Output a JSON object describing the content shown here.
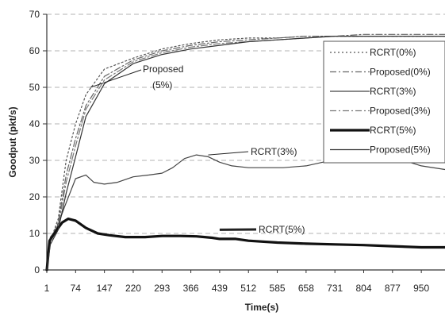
{
  "chart_data": {
    "type": "line",
    "xlabel": "Time(s)",
    "ylabel": "Goodput (pkt/s)",
    "ylim": [
      0,
      70
    ],
    "yticks": [
      "0",
      "10",
      "20",
      "30",
      "40",
      "50",
      "60",
      "70"
    ],
    "xticks": [
      "1",
      "74",
      "147",
      "220",
      "293",
      "366",
      "439",
      "512",
      "585",
      "658",
      "731",
      "804",
      "877",
      "950"
    ],
    "xlim": [
      1,
      1010
    ],
    "grid": "horizontal dashed",
    "legend_position": "right",
    "series": [
      {
        "name": "RCRT(0%)",
        "style": "dotted",
        "width": 1.2,
        "color": "#555555",
        "points": [
          [
            1,
            0
          ],
          [
            10,
            8
          ],
          [
            30,
            14
          ],
          [
            50,
            30
          ],
          [
            74,
            40
          ],
          [
            100,
            48
          ],
          [
            147,
            55
          ],
          [
            220,
            58
          ],
          [
            293,
            60.5
          ],
          [
            366,
            62
          ],
          [
            439,
            63
          ],
          [
            512,
            63.5
          ],
          [
            585,
            63.5
          ],
          [
            658,
            64
          ],
          [
            731,
            64
          ],
          [
            804,
            64
          ],
          [
            877,
            64
          ],
          [
            950,
            64
          ],
          [
            1010,
            64
          ]
        ]
      },
      {
        "name": "Proposed(0%)",
        "style": "dashdot",
        "width": 1.2,
        "color": "#666666",
        "points": [
          [
            1,
            0
          ],
          [
            10,
            8
          ],
          [
            30,
            13
          ],
          [
            50,
            26
          ],
          [
            74,
            36
          ],
          [
            100,
            45
          ],
          [
            147,
            53
          ],
          [
            220,
            57.5
          ],
          [
            293,
            60
          ],
          [
            366,
            61.5
          ],
          [
            439,
            62.5
          ],
          [
            512,
            63
          ],
          [
            585,
            63.5
          ],
          [
            658,
            64
          ],
          [
            731,
            64
          ],
          [
            804,
            64.5
          ],
          [
            877,
            64.5
          ],
          [
            950,
            64.5
          ],
          [
            1010,
            64.5
          ]
        ]
      },
      {
        "name": "RCRT(3%)",
        "style": "solid",
        "width": 1.2,
        "color": "#444444",
        "points": [
          [
            1,
            0
          ],
          [
            10,
            9
          ],
          [
            25,
            11
          ],
          [
            45,
            17
          ],
          [
            74,
            25
          ],
          [
            100,
            26
          ],
          [
            120,
            24
          ],
          [
            147,
            23.5
          ],
          [
            180,
            24
          ],
          [
            220,
            25.5
          ],
          [
            260,
            26
          ],
          [
            293,
            26.5
          ],
          [
            320,
            28
          ],
          [
            350,
            30.5
          ],
          [
            380,
            31.5
          ],
          [
            410,
            31
          ],
          [
            439,
            29.5
          ],
          [
            470,
            28.5
          ],
          [
            512,
            28
          ],
          [
            560,
            28
          ],
          [
            600,
            28
          ],
          [
            658,
            28.5
          ],
          [
            700,
            29.5
          ],
          [
            731,
            30.5
          ],
          [
            780,
            31
          ],
          [
            830,
            30.5
          ],
          [
            877,
            30
          ],
          [
            920,
            29.5
          ],
          [
            950,
            28.5
          ],
          [
            1010,
            27.5
          ]
        ]
      },
      {
        "name": "Proposed(3%)",
        "style": "dashdot",
        "width": 1.2,
        "color": "#777777",
        "points": [
          [
            1,
            0
          ],
          [
            10,
            8
          ],
          [
            30,
            12
          ],
          [
            50,
            24
          ],
          [
            74,
            34
          ],
          [
            100,
            44
          ],
          [
            147,
            52
          ],
          [
            220,
            57
          ],
          [
            293,
            59.5
          ],
          [
            366,
            61
          ],
          [
            439,
            62
          ],
          [
            512,
            62.5
          ],
          [
            585,
            63
          ],
          [
            658,
            63.5
          ],
          [
            731,
            64
          ],
          [
            804,
            64
          ],
          [
            877,
            64
          ],
          [
            950,
            64
          ],
          [
            1010,
            64
          ]
        ]
      },
      {
        "name": "RCRT(5%)",
        "style": "solid",
        "width": 3.2,
        "color": "#111111",
        "points": [
          [
            1,
            0
          ],
          [
            8,
            8
          ],
          [
            20,
            10
          ],
          [
            40,
            13
          ],
          [
            55,
            14
          ],
          [
            74,
            13.5
          ],
          [
            100,
            11.5
          ],
          [
            130,
            10
          ],
          [
            160,
            9.5
          ],
          [
            200,
            9
          ],
          [
            250,
            9
          ],
          [
            293,
            9.3
          ],
          [
            340,
            9.3
          ],
          [
            380,
            9.2
          ],
          [
            420,
            8.8
          ],
          [
            439,
            8.5
          ],
          [
            480,
            8.5
          ],
          [
            512,
            8
          ],
          [
            585,
            7.5
          ],
          [
            658,
            7.2
          ],
          [
            731,
            7
          ],
          [
            804,
            6.8
          ],
          [
            877,
            6.5
          ],
          [
            950,
            6.2
          ],
          [
            1010,
            6.2
          ]
        ]
      },
      {
        "name": "Proposed(5%)",
        "style": "solid",
        "width": 1.2,
        "color": "#333333",
        "points": [
          [
            1,
            0
          ],
          [
            10,
            7
          ],
          [
            30,
            11
          ],
          [
            50,
            21
          ],
          [
            74,
            31
          ],
          [
            100,
            42
          ],
          [
            147,
            51
          ],
          [
            220,
            56.5
          ],
          [
            293,
            59
          ],
          [
            366,
            60.5
          ],
          [
            439,
            61.5
          ],
          [
            512,
            62.5
          ],
          [
            585,
            63
          ],
          [
            658,
            63.5
          ],
          [
            731,
            64
          ],
          [
            804,
            64
          ],
          [
            877,
            64
          ],
          [
            950,
            64
          ],
          [
            1010,
            64
          ]
        ]
      }
    ],
    "annotations": [
      {
        "text_lines": [
          "Proposed",
          "(5%)"
        ],
        "target": [
          112,
          50
        ]
      },
      {
        "text_lines": [
          "RCRT(3%)"
        ],
        "target": [
          410,
          31.5
        ]
      },
      {
        "text_lines": [
          "RCRT(5%)"
        ],
        "target": [
          439,
          11
        ]
      }
    ]
  }
}
